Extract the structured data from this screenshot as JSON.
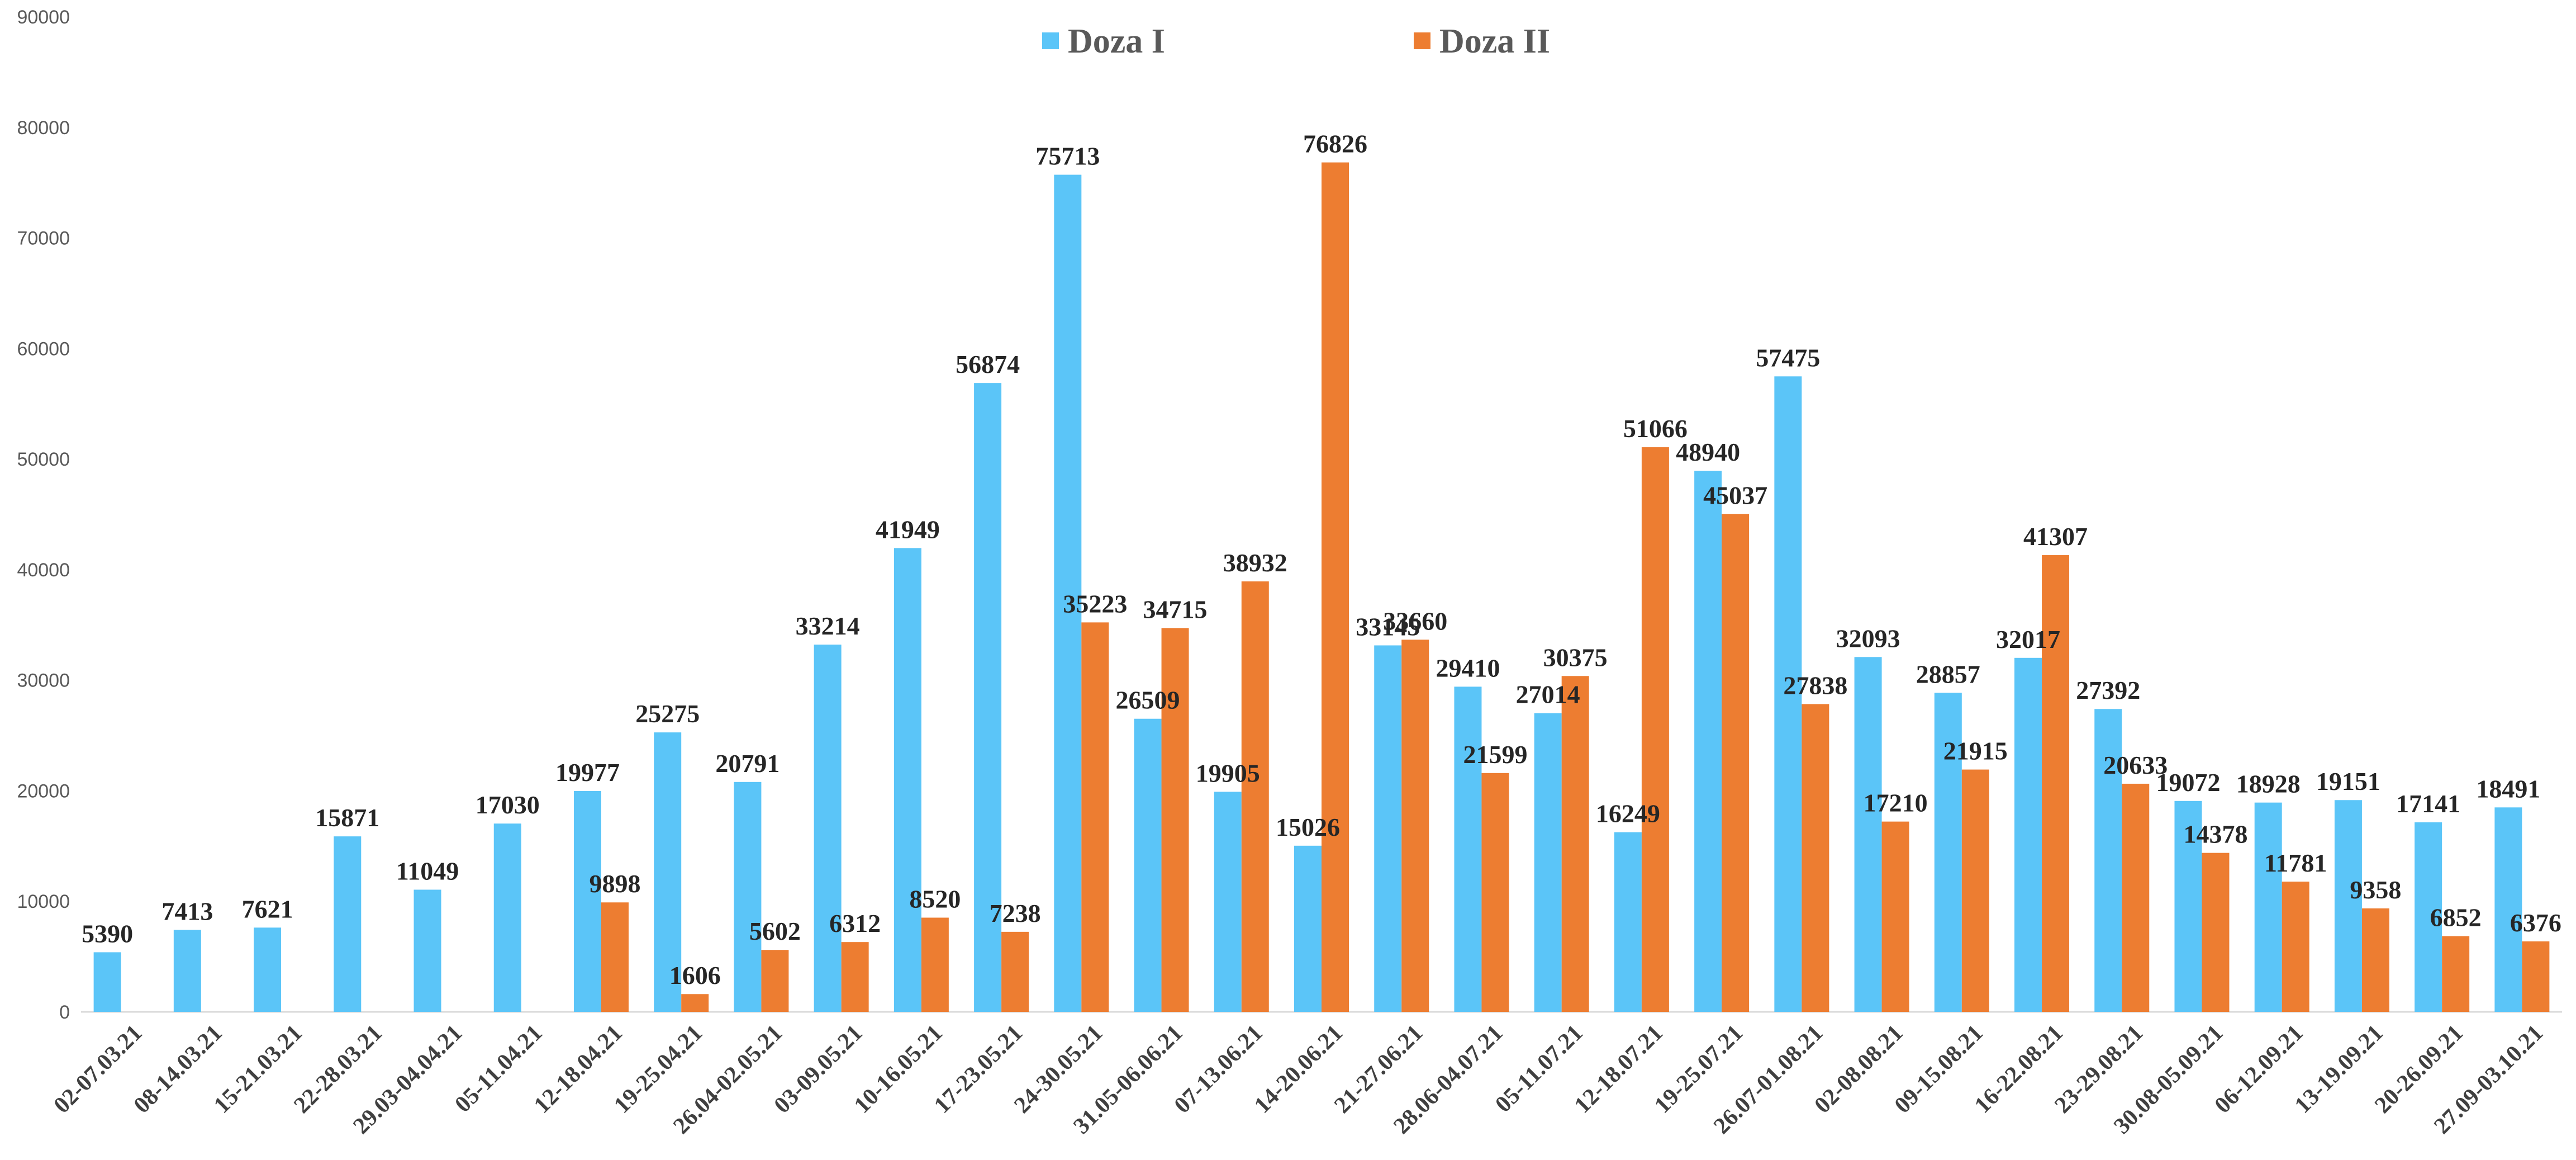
{
  "chart_data": {
    "type": "bar",
    "title": "",
    "xlabel": "",
    "ylabel": "",
    "ylim": [
      0,
      90000
    ],
    "yticks": [
      0,
      10000,
      20000,
      30000,
      40000,
      50000,
      60000,
      70000,
      80000,
      90000
    ],
    "grid": false,
    "legend_position": "top-center",
    "categories": [
      "02-07.03.21",
      "08-14.03.21",
      "15-21.03.21",
      "22-28.03.21",
      "29.03-04.04.21",
      "05-11.04.21",
      "12-18.04.21",
      "19-25.04.21",
      "26.04-02.05.21",
      "03-09.05.21",
      "10-16.05.21",
      "17-23.05.21",
      "24-30.05.21",
      "31.05-06.06.21",
      "07-13.06.21",
      "14-20.06.21",
      "21-27.06.21",
      "28.06-04.07.21",
      "05-11.07.21",
      "12-18.07.21",
      "19-25.07.21",
      "26.07-01.08.21",
      "02-08.08.21",
      "09-15.08.21",
      "16-22.08.21",
      "23-29.08.21",
      "30.08-05.09.21",
      "06-12.09.21",
      "13-19.09.21",
      "20-26.09.21",
      "27.09-03.10.21"
    ],
    "series": [
      {
        "name": "Doza I",
        "color": "#5BC5F8",
        "values": [
          5390,
          7413,
          7621,
          15871,
          11049,
          17030,
          19977,
          25275,
          20791,
          33214,
          41949,
          56874,
          75713,
          26509,
          19905,
          15026,
          33145,
          29410,
          27014,
          16249,
          48940,
          57475,
          32093,
          28857,
          32017,
          27392,
          19072,
          18928,
          19151,
          17141,
          18491
        ]
      },
      {
        "name": "Doza II",
        "color": "#ED7D31",
        "values": [
          null,
          null,
          null,
          null,
          null,
          null,
          9898,
          1606,
          5602,
          6312,
          8520,
          7238,
          35223,
          34715,
          38932,
          76826,
          33660,
          21599,
          30375,
          51066,
          45037,
          27838,
          17210,
          21915,
          41307,
          20633,
          14378,
          11781,
          9358,
          6852,
          6376
        ]
      }
    ]
  }
}
